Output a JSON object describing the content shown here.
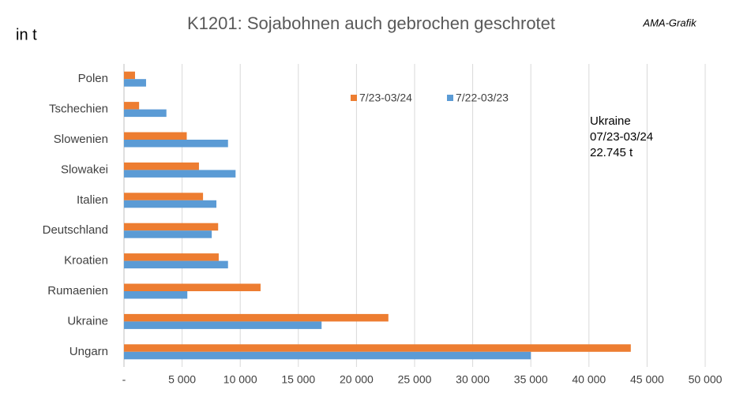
{
  "chart_data": {
    "type": "barh",
    "title": "K1201: Sojabohnen auch gebrochen geschrotet",
    "unit_label": "in t",
    "source": "AMA-Grafik",
    "annotation": [
      "Ukraine",
      "07/23-03/24",
      "22.745 t"
    ],
    "categories": [
      "Polen",
      "Tschechien",
      "Slowenien",
      "Slowakei",
      "Italien",
      "Deutschland",
      "Kroatien",
      "Rumaenien",
      "Ukraine",
      "Ungarn"
    ],
    "series": [
      {
        "name": "7/23-03/24",
        "color": "#ED7D31",
        "values": [
          950,
          1300,
          5400,
          6450,
          6800,
          8100,
          8150,
          11750,
          22745,
          43600
        ]
      },
      {
        "name": "7/22-03/23",
        "color": "#5B9BD5",
        "values": [
          1900,
          3650,
          8950,
          9600,
          7950,
          7550,
          8950,
          5450,
          17000,
          35000
        ]
      }
    ],
    "xlim": [
      0,
      50000
    ],
    "xticks": [
      {
        "value": 0,
        "label": "-"
      },
      {
        "value": 5000,
        "label": "5 000"
      },
      {
        "value": 10000,
        "label": "10 000"
      },
      {
        "value": 15000,
        "label": "15 000"
      },
      {
        "value": 20000,
        "label": "20 000"
      },
      {
        "value": 25000,
        "label": "25 000"
      },
      {
        "value": 30000,
        "label": "30 000"
      },
      {
        "value": 35000,
        "label": "35 000"
      },
      {
        "value": 40000,
        "label": "40 000"
      },
      {
        "value": 45000,
        "label": "45 000"
      },
      {
        "value": 50000,
        "label": "50 000"
      }
    ],
    "grid": true
  }
}
